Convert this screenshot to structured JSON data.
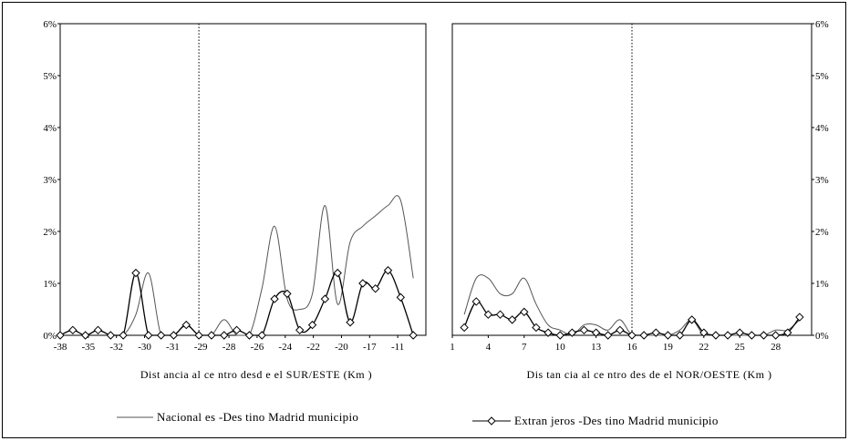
{
  "chart_data": [
    {
      "type": "line",
      "xlabel": "Dist ancia al ce ntro desd e el SUR/ESTE (Km )",
      "ylabel": "",
      "ylim": [
        0,
        0.06
      ],
      "y_ticks": [
        "0%",
        "1%",
        "2%",
        "3%",
        "4%",
        "5%",
        "6%"
      ],
      "x_ticks": [
        "-38",
        "-35",
        "-32",
        "-30",
        "-31",
        "-29",
        "-28",
        "-26",
        "-24",
        "-22",
        "-20",
        "-17",
        "-11"
      ],
      "x_tick_values": [
        -38,
        -35,
        -32,
        -30,
        -31,
        -29,
        -28,
        -26,
        -24,
        -22,
        -20,
        -17,
        -11
      ],
      "xlim": [
        -38,
        -9
      ],
      "reference_line_x": -27,
      "series": [
        {
          "name": "Nacional es -Des tino Madrid municipio",
          "color": "#555555",
          "x": [
            -38,
            -37,
            -36,
            -35,
            -34,
            -33,
            -32,
            -31,
            -30,
            -29,
            -28,
            -27,
            -26,
            -25,
            -24,
            -23,
            -22,
            -21,
            -20,
            -19,
            -18,
            -17,
            -16,
            -15,
            -14,
            -13,
            -12,
            -11,
            -10
          ],
          "values": [
            0.0,
            0.001,
            0.0,
            0.001,
            0.0,
            0.0,
            0.004,
            0.012,
            0.0,
            0.0,
            0.002,
            0.0,
            0.0,
            0.003,
            0.0,
            0.0,
            0.009,
            0.021,
            0.007,
            0.005,
            0.008,
            0.025,
            0.006,
            0.018,
            0.021,
            0.023,
            0.025,
            0.026,
            0.011
          ]
        },
        {
          "name": "Extran jeros -Des tino Madrid municipio",
          "color": "#000000",
          "x": [
            -38,
            -37,
            -36,
            -35,
            -34,
            -33,
            -32,
            -31,
            -30,
            -29,
            -28,
            -27,
            -26,
            -25,
            -24,
            -23,
            -22,
            -21,
            -20,
            -19,
            -18,
            -17,
            -16,
            -15,
            -14,
            -13,
            -12,
            -11,
            -10
          ],
          "values": [
            0.0,
            0.001,
            0.0,
            0.001,
            0.0,
            0.0,
            0.012,
            0.0,
            0.0,
            0.0,
            0.002,
            0.0,
            0.0,
            0.0,
            0.001,
            0.0,
            0.0,
            0.007,
            0.008,
            0.001,
            0.002,
            0.007,
            0.012,
            0.0025,
            0.01,
            0.009,
            0.0125,
            0.0073,
            0.0
          ]
        }
      ]
    },
    {
      "type": "line",
      "xlabel": "Dis tan cia al ce ntro des de el NOR/OESTE (Km )",
      "ylabel": "",
      "ylim": [
        0,
        0.06
      ],
      "y_ticks": [
        "0%",
        "1%",
        "2%",
        "3%",
        "4%",
        "5%",
        "6%"
      ],
      "x_ticks": [
        "1",
        "4",
        "7",
        "10",
        "13",
        "16",
        "19",
        "22",
        "25",
        "28"
      ],
      "x_tick_values": [
        1,
        4,
        7,
        10,
        13,
        16,
        19,
        22,
        25,
        28
      ],
      "xlim": [
        1,
        31
      ],
      "reference_line_x": 16,
      "series": [
        {
          "name": "Nacional es -Des tino Madrid municipio",
          "color": "#555555",
          "x": [
            2,
            3,
            4,
            5,
            6,
            7,
            8,
            9,
            10,
            11,
            12,
            13,
            14,
            15,
            16,
            17,
            18,
            19,
            20,
            21,
            22,
            23,
            24,
            25,
            26,
            27,
            28,
            29,
            30
          ],
          "values": [
            0.004,
            0.011,
            0.011,
            0.008,
            0.008,
            0.011,
            0.006,
            0.002,
            0.001,
            0.0,
            0.002,
            0.002,
            0.001,
            0.003,
            0.0,
            0.0,
            0.0,
            0.0,
            0.001,
            0.003,
            0.0,
            0.0,
            0.0,
            0.0,
            0.0,
            0.0,
            0.001,
            0.001,
            0.003
          ]
        },
        {
          "name": "Extran jeros -Des tino Madrid municipio",
          "color": "#000000",
          "x": [
            2,
            3,
            4,
            5,
            6,
            7,
            8,
            9,
            10,
            11,
            12,
            13,
            14,
            15,
            16,
            17,
            18,
            19,
            20,
            21,
            22,
            23,
            24,
            25,
            26,
            27,
            28,
            29,
            30
          ],
          "values": [
            0.0015,
            0.0065,
            0.004,
            0.004,
            0.003,
            0.0045,
            0.0015,
            0.0005,
            0.0,
            0.0005,
            0.001,
            0.0005,
            0.0,
            0.001,
            0.0,
            0.0,
            0.0005,
            0.0,
            0.0,
            0.003,
            0.0005,
            0.0,
            0.0,
            0.0005,
            0.0,
            0.0,
            0.0,
            0.0005,
            0.0035
          ]
        }
      ]
    }
  ],
  "legend": {
    "nacionales": "Nacional es -Des tino Madrid municipio",
    "extranjeros": "Extran jeros -Des tino Madrid municipio"
  }
}
